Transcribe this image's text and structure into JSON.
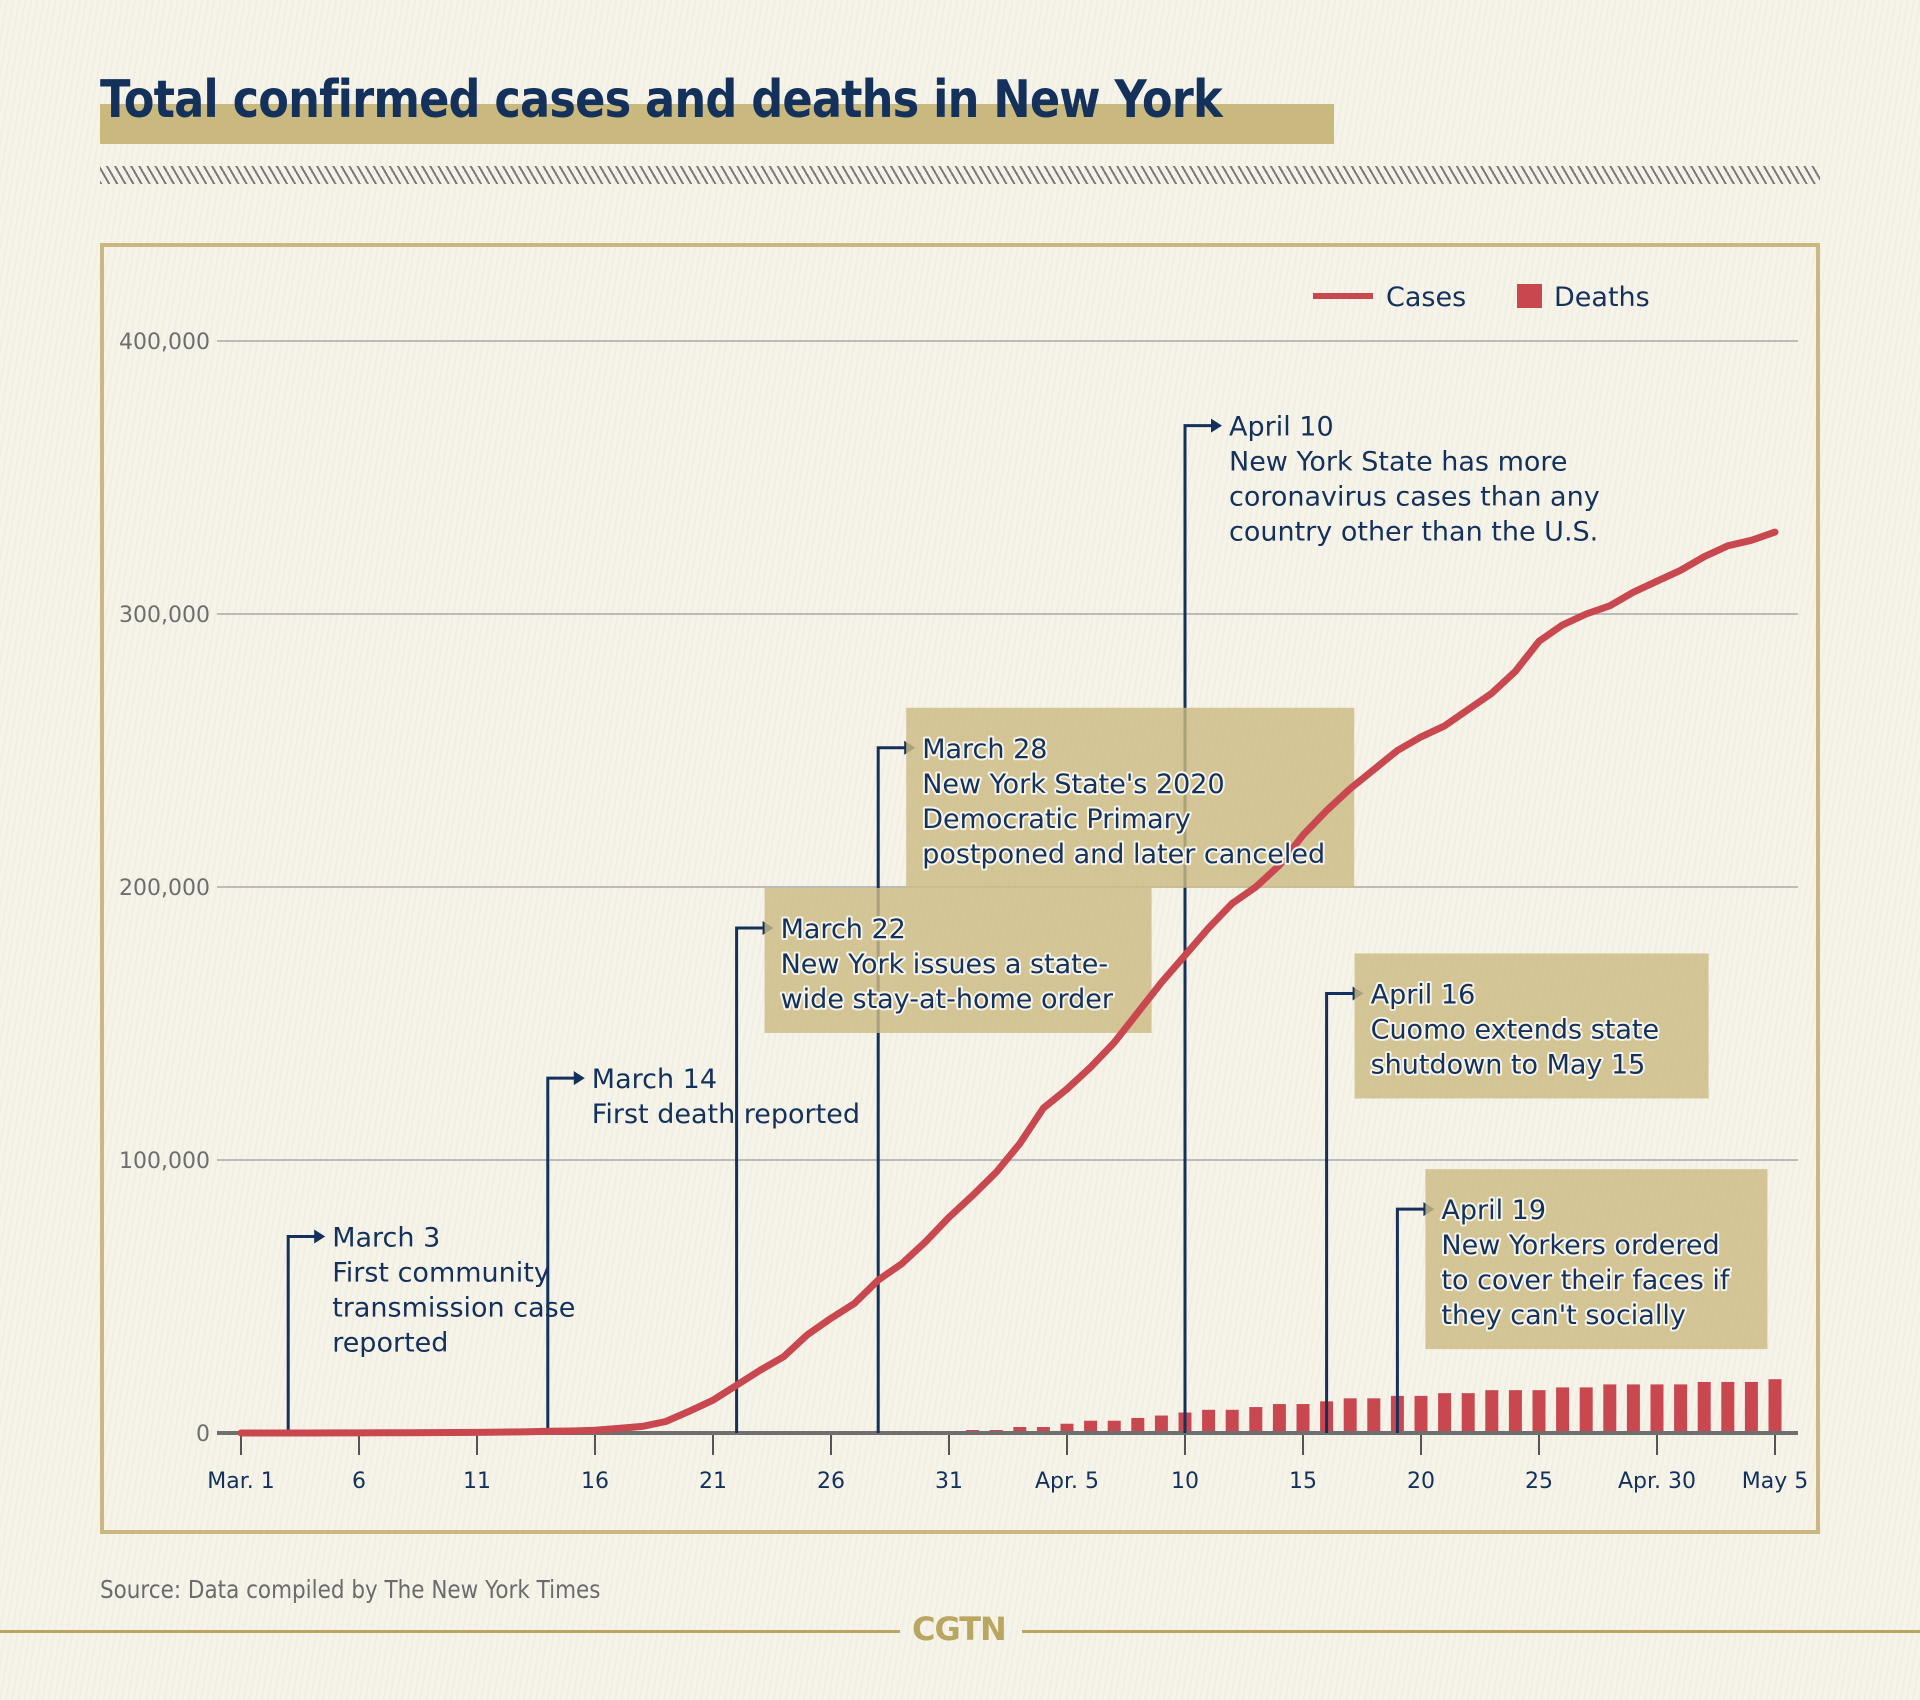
{
  "header": {
    "title": "Total confirmed cases and deaths in New York"
  },
  "footer": {
    "source": "Source: Data compiled by The New York Times",
    "brand": "CGTN"
  },
  "colors": {
    "cases": "#c9484f",
    "deaths": "#c9484f",
    "navy": "#13315a",
    "gold": "#cbb87e",
    "annotation_box": "#cbbb83"
  },
  "chart_data": {
    "type": "line",
    "title": "Total confirmed cases and deaths in New York",
    "xlabel": "",
    "ylabel": "",
    "ylim": [
      0,
      400000
    ],
    "yticks": [
      0,
      100000,
      200000,
      300000,
      400000
    ],
    "ytick_labels": [
      "0",
      "100,000",
      "200,000",
      "300,000",
      "400,000"
    ],
    "xtick_days": [
      0,
      5,
      10,
      15,
      20,
      25,
      30,
      35,
      40,
      45,
      50,
      55,
      60,
      65
    ],
    "xtick_labels": [
      "Mar. 1",
      "6",
      "11",
      "16",
      "21",
      "26",
      "31",
      "Apr. 5",
      "10",
      "15",
      "20",
      "25",
      "Apr. 30",
      "May 5"
    ],
    "grid": true,
    "legend": {
      "position": "top-right",
      "entries": [
        "Cases",
        "Deaths"
      ]
    },
    "x": [
      "Mar 1",
      "Mar 2",
      "Mar 3",
      "Mar 4",
      "Mar 5",
      "Mar 6",
      "Mar 7",
      "Mar 8",
      "Mar 9",
      "Mar 10",
      "Mar 11",
      "Mar 12",
      "Mar 13",
      "Mar 14",
      "Mar 15",
      "Mar 16",
      "Mar 17",
      "Mar 18",
      "Mar 19",
      "Mar 20",
      "Mar 21",
      "Mar 22",
      "Mar 23",
      "Mar 24",
      "Mar 25",
      "Mar 26",
      "Mar 27",
      "Mar 28",
      "Mar 29",
      "Mar 30",
      "Mar 31",
      "Apr 1",
      "Apr 2",
      "Apr 3",
      "Apr 4",
      "Apr 5",
      "Apr 6",
      "Apr 7",
      "Apr 8",
      "Apr 9",
      "Apr 10",
      "Apr 11",
      "Apr 12",
      "Apr 13",
      "Apr 14",
      "Apr 15",
      "Apr 16",
      "Apr 17",
      "Apr 18",
      "Apr 19",
      "Apr 20",
      "Apr 21",
      "Apr 22",
      "Apr 23",
      "Apr 24",
      "Apr 25",
      "Apr 26",
      "Apr 27",
      "Apr 28",
      "Apr 29",
      "Apr 30",
      "May 1",
      "May 2",
      "May 3",
      "May 4",
      "May 5"
    ],
    "series": [
      {
        "name": "Cases",
        "type": "line",
        "values": [
          1,
          1,
          2,
          11,
          22,
          33,
          76,
          105,
          142,
          173,
          216,
          325,
          421,
          613,
          729,
          1000,
          1700,
          2400,
          4200,
          8000,
          12000,
          17500,
          23000,
          28000,
          36000,
          42000,
          47500,
          56000,
          62000,
          70000,
          79000,
          87000,
          95500,
          106000,
          119000,
          126000,
          134000,
          143000,
          154000,
          165000,
          175000,
          185000,
          194000,
          200000,
          208000,
          219000,
          228000,
          236000,
          243000,
          250000,
          255000,
          259000,
          265000,
          271000,
          279000,
          290000,
          296000,
          300000,
          303000,
          308000,
          312000,
          316000,
          321000,
          325000,
          327000,
          330000
        ]
      },
      {
        "name": "Deaths",
        "type": "bar",
        "values": [
          0,
          0,
          0,
          0,
          0,
          0,
          0,
          0,
          0,
          0,
          0,
          0,
          0,
          0,
          0,
          0,
          0,
          0,
          0,
          0,
          0,
          0,
          0,
          0,
          0,
          0,
          0,
          0,
          0,
          400,
          400,
          1100,
          1100,
          2200,
          2200,
          3400,
          4500,
          4500,
          5500,
          6400,
          7500,
          8500,
          8500,
          9500,
          10600,
          10600,
          11600,
          12700,
          12700,
          13600,
          13600,
          14600,
          14600,
          15700,
          15700,
          15700,
          16700,
          16700,
          17800,
          17800,
          17800,
          17800,
          18700,
          18700,
          18700,
          19700
        ]
      }
    ],
    "annotations": [
      {
        "day": 2,
        "date": "March 3",
        "lines": [
          "First community",
          "transmission case",
          "reported"
        ],
        "boxed": false,
        "level": 72000
      },
      {
        "day": 13,
        "date": "March 14",
        "lines": [
          "First death reported"
        ],
        "boxed": false,
        "level": 130000
      },
      {
        "day": 21,
        "date": "March 22",
        "lines": [
          "New York issues a state-",
          "wide stay-at-home order"
        ],
        "boxed": true,
        "level": 185000
      },
      {
        "day": 27,
        "date": "March 28",
        "lines": [
          "New York State's 2020",
          "Democratic Primary",
          "postponed and later canceled"
        ],
        "boxed": true,
        "level": 251000
      },
      {
        "day": 40,
        "date": "April 10",
        "lines": [
          "New York State has more",
          "coronavirus cases than any",
          "country other than the U.S."
        ],
        "boxed": false,
        "level": 369000
      },
      {
        "day": 46,
        "date": "April 16",
        "lines": [
          "Cuomo extends state",
          "shutdown to May 15"
        ],
        "boxed": true,
        "level": 161000
      },
      {
        "day": 49,
        "date": "April 19",
        "lines": [
          "New Yorkers ordered",
          "to cover their faces if",
          "they can't socially"
        ],
        "boxed": true,
        "level": 82000
      }
    ]
  }
}
